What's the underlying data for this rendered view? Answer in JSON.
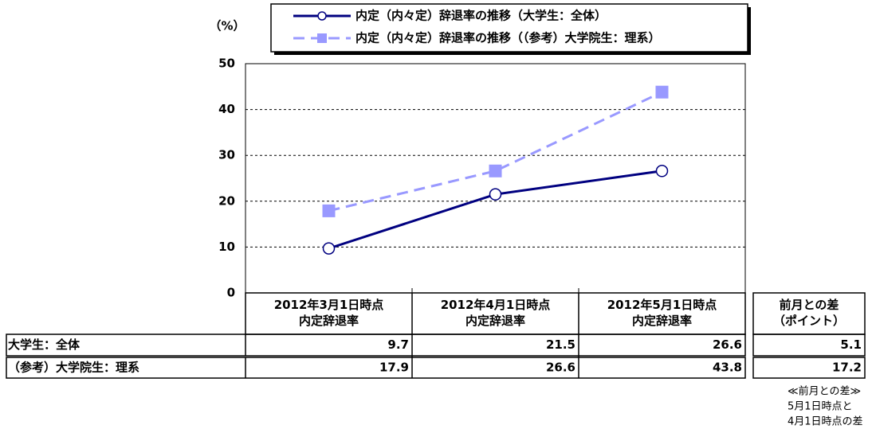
{
  "chart_data": {
    "type": "line",
    "y_unit_label": "（%）",
    "categories": [
      "2012年3月1日時点\n内定辞退率",
      "2012年4月1日時点\n内定辞退率",
      "2012年5月1日時点\n内定辞退率"
    ],
    "series": [
      {
        "name": "内定（内々定）辞退率の推移（大学生：全体）",
        "row_label": "大学生：全体",
        "color": "#000080",
        "marker": "circle",
        "dashed": false,
        "values": [
          9.7,
          21.5,
          26.6
        ]
      },
      {
        "name": "内定（内々定）辞退率の推移（（参考）大学院生：理系）",
        "row_label": "（参考）大学院生：理系",
        "color": "#9999ff",
        "marker": "square",
        "dashed": true,
        "values": [
          17.9,
          26.6,
          43.8
        ]
      }
    ],
    "ylim": [
      0,
      50
    ],
    "yticks": [
      0,
      10,
      20,
      30,
      40,
      50
    ],
    "grid": true,
    "diff": {
      "header": "前月との差\n（ポイント）",
      "values": [
        5.1,
        17.2
      ]
    },
    "note": [
      "≪前月との差≫",
      "5月1日時点と",
      "4月1日時点の差"
    ]
  }
}
